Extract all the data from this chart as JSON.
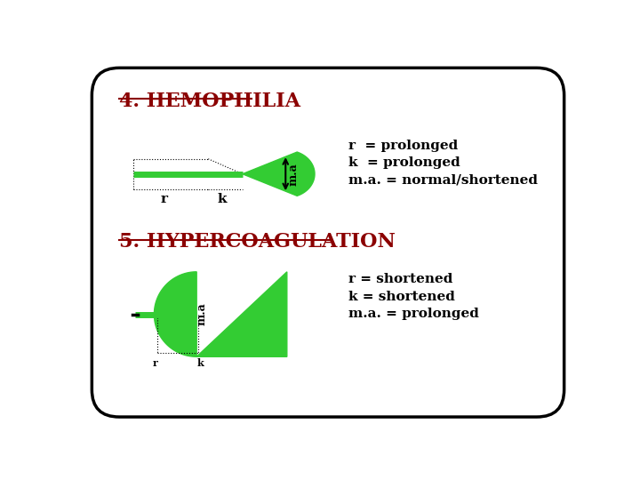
{
  "title1": "4. HEMOPHILIA",
  "title2": "5. HYPERCOAGULATION",
  "title_color": "#8B0000",
  "green_color": "#33CC33",
  "bg_color": "#FFFFFF",
  "border_color": "#000000",
  "hemo_legend": [
    "r  = prolonged",
    "k  = prolonged",
    "m.a. = normal/shortened"
  ],
  "hyper_legend": [
    "r = shortened",
    "k = shortened",
    "m.a. = prolonged"
  ],
  "label_r": "r",
  "label_k": "k",
  "label_ma": "m.a"
}
